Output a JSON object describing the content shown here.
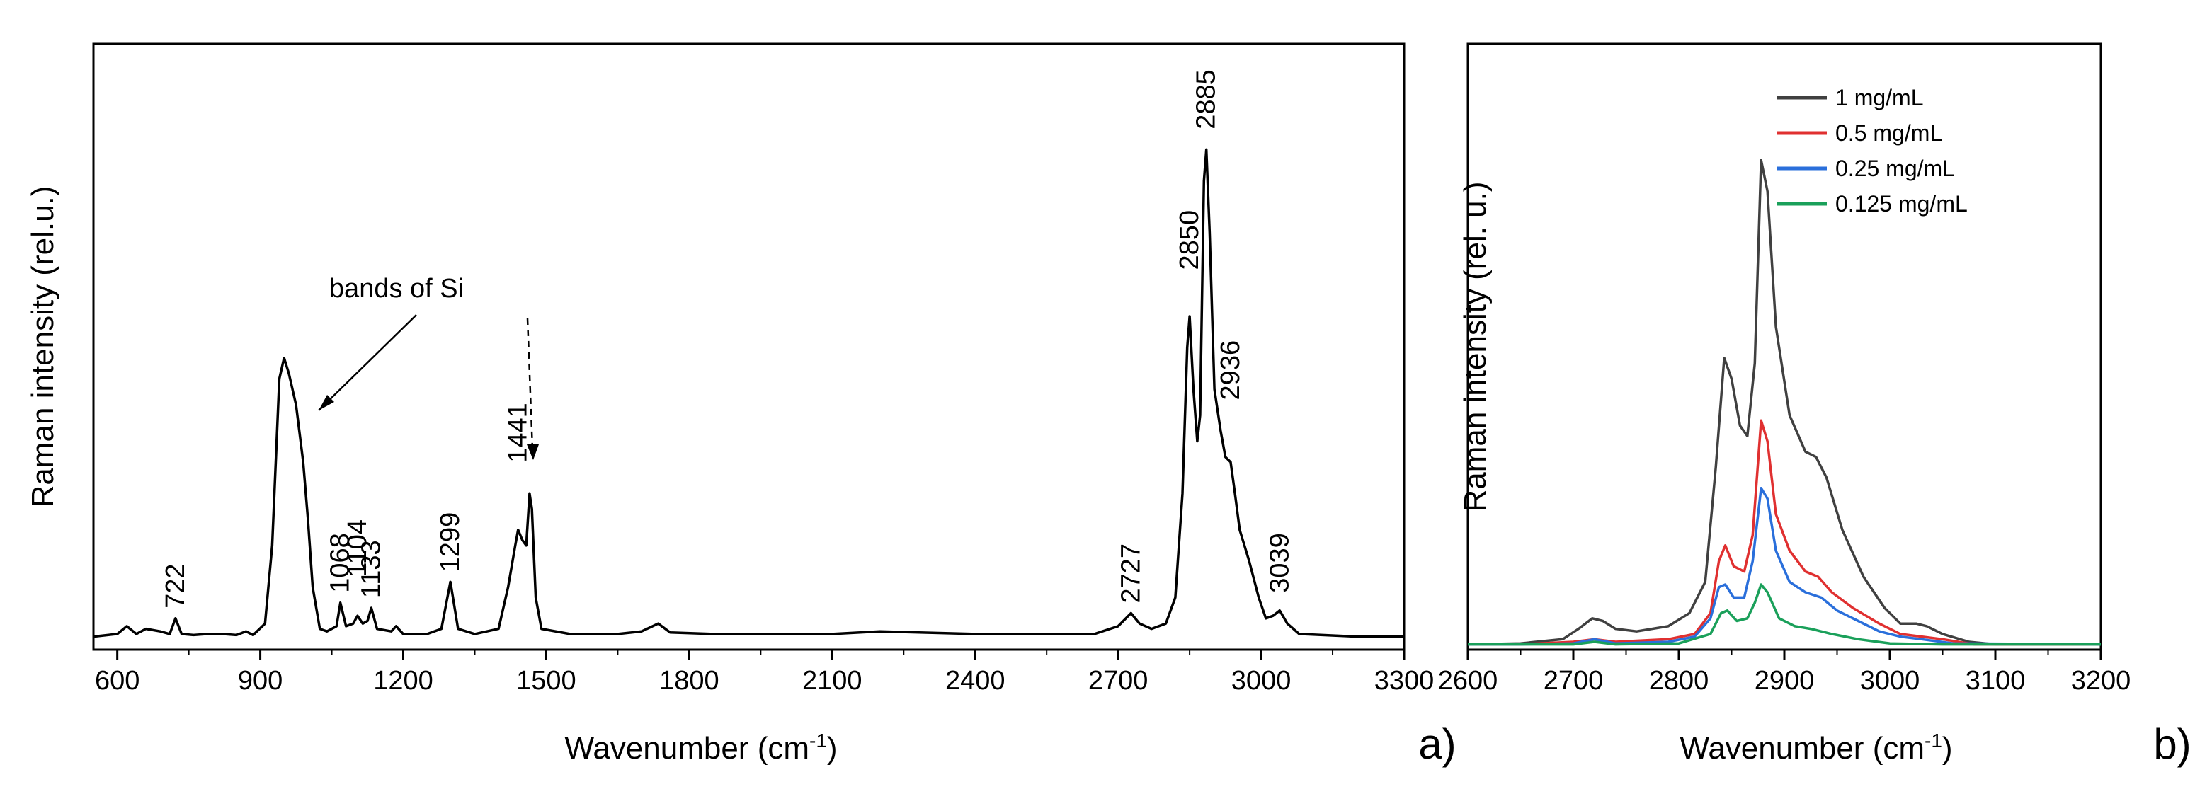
{
  "chart_data": [
    {
      "type": "line",
      "panel_label": "a)",
      "xlabel": "Wavenumber (cm",
      "xlabel_sup": "-1",
      "xlabel_tail": ")",
      "ylabel": "Raman intensity (rel.u.)",
      "xlim": [
        550,
        3300
      ],
      "ylim": [
        0,
        1
      ],
      "xticks": [
        600,
        900,
        1200,
        1500,
        1800,
        2100,
        2400,
        2700,
        3000,
        3300
      ],
      "grid": false,
      "annotation": {
        "text": "bands of Si"
      },
      "peak_labels": [
        {
          "label": "722",
          "x": 722,
          "y": 0.06
        },
        {
          "label": "1068",
          "x": 1068,
          "y": 0.09
        },
        {
          "label": "1104",
          "x": 1104,
          "y": 0.12
        },
        {
          "label": "1133",
          "x": 1133,
          "y": 0.08
        },
        {
          "label": "1299",
          "x": 1299,
          "y": 0.13
        },
        {
          "label": "1441",
          "x": 1441,
          "y": 0.34
        },
        {
          "label": "2727",
          "x": 2727,
          "y": 0.07
        },
        {
          "label": "2850",
          "x": 2850,
          "y": 0.71
        },
        {
          "label": "2885",
          "x": 2885,
          "y": 0.98
        },
        {
          "label": "2936",
          "x": 2936,
          "y": 0.46
        },
        {
          "label": "3039",
          "x": 3039,
          "y": 0.09
        }
      ],
      "series": [
        {
          "name": "spectrum",
          "color": "#000000",
          "points": [
            [
              550,
              0.025
            ],
            [
              600,
              0.03
            ],
            [
              620,
              0.045
            ],
            [
              640,
              0.03
            ],
            [
              660,
              0.04
            ],
            [
              690,
              0.035
            ],
            [
              710,
              0.03
            ],
            [
              722,
              0.06
            ],
            [
              735,
              0.03
            ],
            [
              760,
              0.028
            ],
            [
              790,
              0.03
            ],
            [
              820,
              0.03
            ],
            [
              850,
              0.028
            ],
            [
              870,
              0.035
            ],
            [
              885,
              0.028
            ],
            [
              910,
              0.05
            ],
            [
              925,
              0.2
            ],
            [
              940,
              0.52
            ],
            [
              950,
              0.56
            ],
            [
              960,
              0.53
            ],
            [
              975,
              0.47
            ],
            [
              990,
              0.36
            ],
            [
              1000,
              0.25
            ],
            [
              1010,
              0.12
            ],
            [
              1025,
              0.04
            ],
            [
              1040,
              0.035
            ],
            [
              1060,
              0.045
            ],
            [
              1068,
              0.09
            ],
            [
              1080,
              0.045
            ],
            [
              1095,
              0.05
            ],
            [
              1104,
              0.065
            ],
            [
              1115,
              0.05
            ],
            [
              1125,
              0.055
            ],
            [
              1133,
              0.08
            ],
            [
              1145,
              0.04
            ],
            [
              1175,
              0.035
            ],
            [
              1185,
              0.045
            ],
            [
              1200,
              0.03
            ],
            [
              1250,
              0.03
            ],
            [
              1280,
              0.04
            ],
            [
              1299,
              0.13
            ],
            [
              1315,
              0.04
            ],
            [
              1350,
              0.03
            ],
            [
              1400,
              0.04
            ],
            [
              1420,
              0.12
            ],
            [
              1435,
              0.2
            ],
            [
              1441,
              0.23
            ],
            [
              1450,
              0.21
            ],
            [
              1458,
              0.2
            ],
            [
              1465,
              0.3
            ],
            [
              1470,
              0.27
            ],
            [
              1478,
              0.1
            ],
            [
              1490,
              0.04
            ],
            [
              1550,
              0.03
            ],
            [
              1650,
              0.03
            ],
            [
              1700,
              0.035
            ],
            [
              1735,
              0.05
            ],
            [
              1760,
              0.033
            ],
            [
              1850,
              0.03
            ],
            [
              2100,
              0.03
            ],
            [
              2200,
              0.035
            ],
            [
              2400,
              0.03
            ],
            [
              2650,
              0.03
            ],
            [
              2700,
              0.045
            ],
            [
              2727,
              0.07
            ],
            [
              2745,
              0.05
            ],
            [
              2770,
              0.04
            ],
            [
              2800,
              0.05
            ],
            [
              2820,
              0.1
            ],
            [
              2835,
              0.3
            ],
            [
              2845,
              0.58
            ],
            [
              2850,
              0.64
            ],
            [
              2858,
              0.5
            ],
            [
              2866,
              0.4
            ],
            [
              2872,
              0.45
            ],
            [
              2880,
              0.9
            ],
            [
              2885,
              0.96
            ],
            [
              2892,
              0.8
            ],
            [
              2902,
              0.5
            ],
            [
              2915,
              0.42
            ],
            [
              2925,
              0.37
            ],
            [
              2936,
              0.36
            ],
            [
              2945,
              0.3
            ],
            [
              2955,
              0.23
            ],
            [
              2975,
              0.17
            ],
            [
              2995,
              0.1
            ],
            [
              3010,
              0.06
            ],
            [
              3025,
              0.065
            ],
            [
              3039,
              0.075
            ],
            [
              3055,
              0.05
            ],
            [
              3080,
              0.03
            ],
            [
              3200,
              0.025
            ],
            [
              3300,
              0.025
            ]
          ]
        }
      ]
    },
    {
      "type": "line",
      "panel_label": "b)",
      "xlabel": "Wavenumber (cm",
      "xlabel_sup": "-1",
      "xlabel_tail": ")",
      "ylabel": "Raman intensity (rel. u.)",
      "xlim": [
        2600,
        3200
      ],
      "ylim": [
        0,
        1
      ],
      "xticks": [
        2600,
        2700,
        2800,
        2900,
        3000,
        3100,
        3200
      ],
      "grid": false,
      "legend_position": "top-right",
      "legend": [
        "1 mg/mL",
        "0.5 mg/mL",
        "0.25 mg/mL",
        "0.125 mg/mL"
      ],
      "series": [
        {
          "name": "1 mg/mL",
          "color": "#404040",
          "points": [
            [
              2600,
              0.01
            ],
            [
              2650,
              0.012
            ],
            [
              2690,
              0.02
            ],
            [
              2705,
              0.04
            ],
            [
              2718,
              0.06
            ],
            [
              2728,
              0.055
            ],
            [
              2740,
              0.04
            ],
            [
              2760,
              0.035
            ],
            [
              2790,
              0.045
            ],
            [
              2810,
              0.07
            ],
            [
              2825,
              0.13
            ],
            [
              2835,
              0.35
            ],
            [
              2843,
              0.56
            ],
            [
              2850,
              0.52
            ],
            [
              2858,
              0.43
            ],
            [
              2865,
              0.41
            ],
            [
              2872,
              0.55
            ],
            [
              2878,
              0.94
            ],
            [
              2884,
              0.88
            ],
            [
              2892,
              0.62
            ],
            [
              2905,
              0.45
            ],
            [
              2920,
              0.38
            ],
            [
              2930,
              0.37
            ],
            [
              2940,
              0.33
            ],
            [
              2955,
              0.23
            ],
            [
              2975,
              0.14
            ],
            [
              2995,
              0.08
            ],
            [
              3010,
              0.05
            ],
            [
              3025,
              0.05
            ],
            [
              3035,
              0.045
            ],
            [
              3050,
              0.03
            ],
            [
              3075,
              0.015
            ],
            [
              3100,
              0.01
            ],
            [
              3200,
              0.01
            ]
          ]
        },
        {
          "name": "0.5 mg/mL",
          "color": "#e03030",
          "points": [
            [
              2600,
              0.01
            ],
            [
              2650,
              0.01
            ],
            [
              2700,
              0.015
            ],
            [
              2720,
              0.02
            ],
            [
              2740,
              0.015
            ],
            [
              2790,
              0.02
            ],
            [
              2815,
              0.03
            ],
            [
              2830,
              0.07
            ],
            [
              2838,
              0.17
            ],
            [
              2844,
              0.2
            ],
            [
              2852,
              0.16
            ],
            [
              2862,
              0.15
            ],
            [
              2870,
              0.22
            ],
            [
              2878,
              0.44
            ],
            [
              2884,
              0.4
            ],
            [
              2892,
              0.26
            ],
            [
              2905,
              0.19
            ],
            [
              2920,
              0.15
            ],
            [
              2932,
              0.14
            ],
            [
              2945,
              0.11
            ],
            [
              2965,
              0.08
            ],
            [
              2990,
              0.05
            ],
            [
              3010,
              0.03
            ],
            [
              3030,
              0.025
            ],
            [
              3050,
              0.02
            ],
            [
              3080,
              0.01
            ],
            [
              3200,
              0.01
            ]
          ]
        },
        {
          "name": "0.25 mg/mL",
          "color": "#2a6fdb",
          "points": [
            [
              2600,
              0.01
            ],
            [
              2650,
              0.01
            ],
            [
              2700,
              0.012
            ],
            [
              2720,
              0.02
            ],
            [
              2740,
              0.012
            ],
            [
              2790,
              0.015
            ],
            [
              2815,
              0.025
            ],
            [
              2830,
              0.06
            ],
            [
              2838,
              0.12
            ],
            [
              2844,
              0.125
            ],
            [
              2852,
              0.1
            ],
            [
              2862,
              0.1
            ],
            [
              2870,
              0.17
            ],
            [
              2878,
              0.31
            ],
            [
              2884,
              0.29
            ],
            [
              2892,
              0.19
            ],
            [
              2905,
              0.13
            ],
            [
              2920,
              0.11
            ],
            [
              2935,
              0.1
            ],
            [
              2950,
              0.075
            ],
            [
              2970,
              0.055
            ],
            [
              2990,
              0.035
            ],
            [
              3010,
              0.025
            ],
            [
              3030,
              0.02
            ],
            [
              3060,
              0.012
            ],
            [
              3200,
              0.01
            ]
          ]
        },
        {
          "name": "0.125 mg/mL",
          "color": "#1aa05a",
          "points": [
            [
              2600,
              0.01
            ],
            [
              2650,
              0.01
            ],
            [
              2700,
              0.01
            ],
            [
              2720,
              0.015
            ],
            [
              2740,
              0.01
            ],
            [
              2800,
              0.012
            ],
            [
              2830,
              0.03
            ],
            [
              2840,
              0.07
            ],
            [
              2846,
              0.075
            ],
            [
              2855,
              0.055
            ],
            [
              2865,
              0.06
            ],
            [
              2872,
              0.09
            ],
            [
              2878,
              0.125
            ],
            [
              2884,
              0.11
            ],
            [
              2895,
              0.06
            ],
            [
              2910,
              0.045
            ],
            [
              2925,
              0.04
            ],
            [
              2945,
              0.03
            ],
            [
              2970,
              0.02
            ],
            [
              3000,
              0.012
            ],
            [
              3050,
              0.01
            ],
            [
              3200,
              0.01
            ]
          ]
        }
      ]
    }
  ]
}
